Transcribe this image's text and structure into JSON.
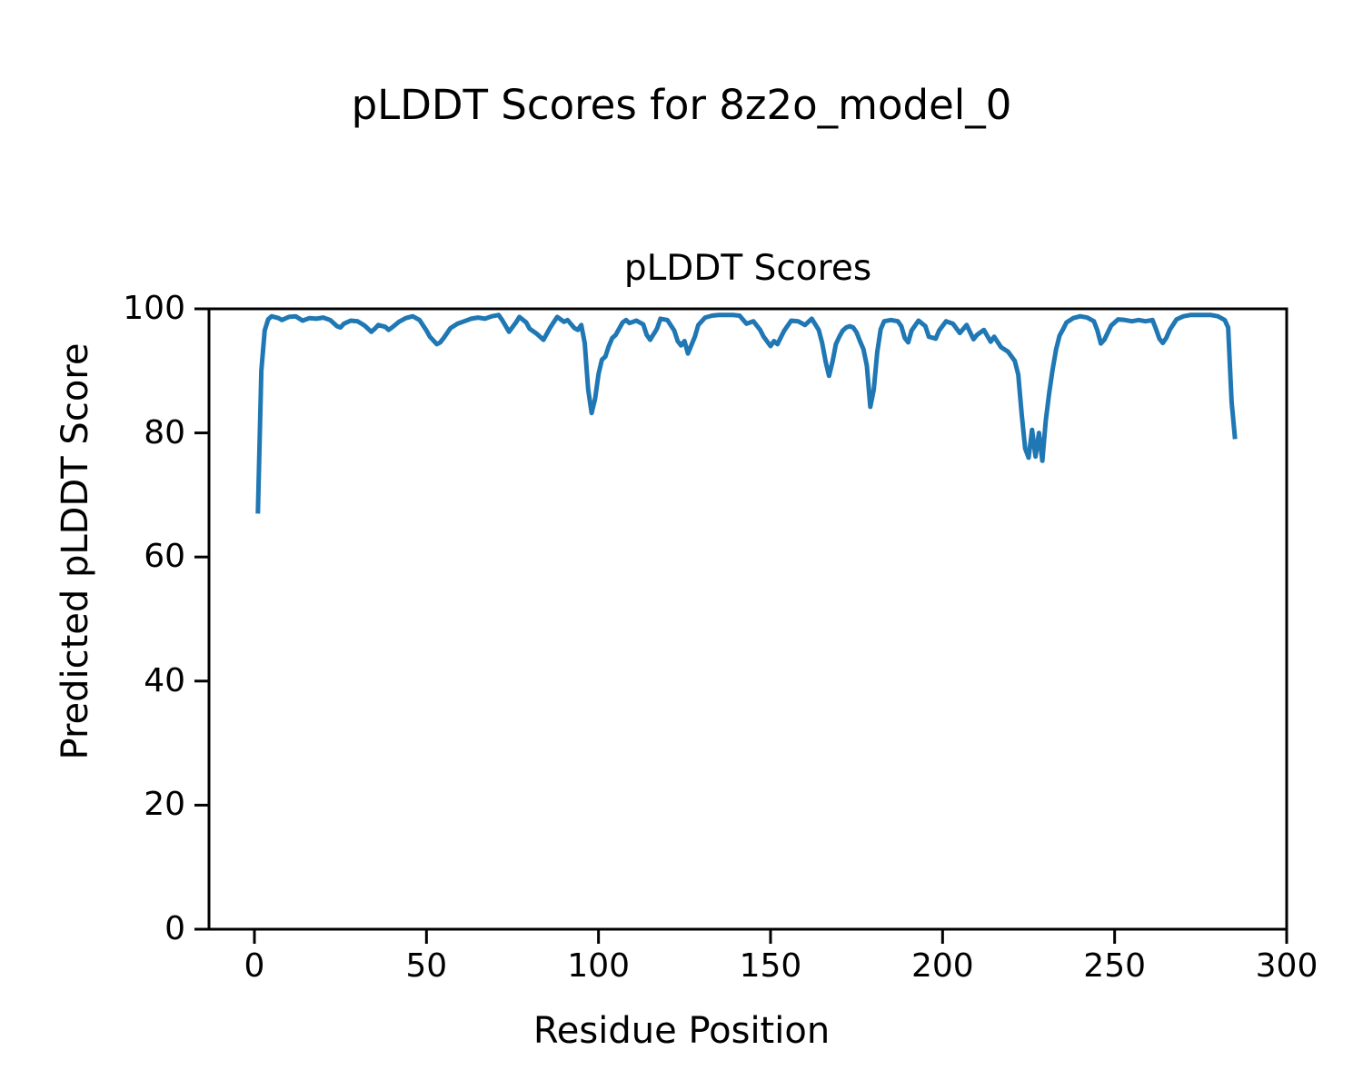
{
  "figure": {
    "suptitle": "pLDDT Scores for 8z2o_model_0",
    "background_color": "#ffffff",
    "text_color": "#000000"
  },
  "chart_data": {
    "type": "line",
    "title": "pLDDT Scores",
    "xlabel": "Residue Position",
    "ylabel": "Predicted pLDDT Score",
    "xlim": [
      -13.2,
      300
    ],
    "ylim": [
      0,
      100
    ],
    "xticks": [
      0,
      50,
      100,
      150,
      200,
      250,
      300
    ],
    "yticks": [
      0,
      20,
      40,
      60,
      80,
      100
    ],
    "grid": false,
    "legend": null,
    "line_color": "#1f77b4",
    "spine_color": "#000000",
    "series": [
      {
        "name": "pLDDT",
        "x": [
          1,
          2,
          3,
          4,
          5,
          7,
          8,
          10,
          12,
          14,
          16,
          18,
          20,
          22,
          24,
          25,
          26,
          28,
          30,
          32,
          34,
          35,
          36,
          38,
          39,
          40,
          42,
          44,
          46,
          48,
          50,
          51,
          53,
          54,
          55,
          57,
          59,
          61,
          63,
          65,
          67,
          69,
          71,
          72,
          74,
          76,
          77,
          79,
          80,
          82,
          84,
          86,
          88,
          90,
          91,
          93,
          94,
          95,
          96,
          97,
          98,
          99,
          100,
          101,
          102,
          103,
          104,
          105,
          107,
          108,
          109,
          111,
          113,
          114,
          115,
          117,
          118,
          120,
          122,
          123,
          124,
          125,
          126,
          128,
          129,
          131,
          133,
          135,
          137,
          139,
          141,
          143,
          145,
          147,
          148,
          150,
          151,
          152,
          154,
          156,
          158,
          160,
          162,
          164,
          165,
          166,
          167,
          168,
          169,
          170,
          171,
          172,
          173,
          174,
          175,
          176,
          177,
          178,
          179,
          180,
          181,
          182,
          183,
          185,
          187,
          188,
          189,
          190,
          191,
          193,
          195,
          196,
          198,
          199,
          201,
          203,
          205,
          207,
          209,
          210,
          212,
          214,
          215,
          217,
          219,
          221,
          222,
          223,
          224,
          225,
          226,
          227,
          228,
          229,
          230,
          231,
          232,
          233,
          234,
          235,
          236,
          238,
          240,
          242,
          244,
          245,
          246,
          247,
          249,
          251,
          253,
          255,
          257,
          259,
          261,
          262,
          263,
          264,
          265,
          266,
          268,
          270,
          272,
          274,
          276,
          278,
          280,
          282,
          283,
          284,
          285
        ],
        "y": [
          67,
          90,
          96.5,
          98.3,
          98.8,
          98.5,
          98.2,
          98.7,
          98.8,
          98.1,
          98.5,
          98.4,
          98.6,
          98.2,
          97.2,
          97,
          97.6,
          98.1,
          98,
          97.3,
          96.3,
          96.8,
          97.4,
          97.1,
          96.6,
          97,
          97.9,
          98.5,
          98.8,
          98.2,
          96.5,
          95.5,
          94.3,
          94.6,
          95.3,
          96.9,
          97.6,
          98,
          98.4,
          98.6,
          98.4,
          98.8,
          99,
          98.2,
          96.3,
          97.8,
          98.7,
          97.8,
          96.8,
          96,
          95,
          97,
          98.7,
          97.9,
          98.2,
          96.9,
          96.6,
          97.4,
          94.5,
          87,
          83.2,
          85.5,
          89.5,
          91.8,
          92.3,
          94,
          95.3,
          95.8,
          97.8,
          98.2,
          97.7,
          98.1,
          97.5,
          95.8,
          95,
          96.8,
          98.4,
          98.2,
          96.5,
          94.8,
          94.1,
          94.8,
          92.8,
          95.5,
          97.4,
          98.6,
          98.9,
          99,
          99,
          99,
          98.9,
          97.6,
          98,
          96.6,
          95.5,
          94,
          94.8,
          94.3,
          96.5,
          98.1,
          98,
          97.4,
          98.4,
          96.6,
          94.5,
          91.5,
          89.2,
          91.5,
          94.3,
          95.5,
          96.5,
          97,
          97.2,
          97,
          96.2,
          94.8,
          93.5,
          90.8,
          84.2,
          87,
          93,
          96.7,
          98,
          98.2,
          98,
          97.2,
          95.3,
          94.6,
          96.5,
          98.1,
          97.2,
          95.5,
          95.2,
          96.5,
          98,
          97.6,
          96.1,
          97.4,
          95.1,
          95.8,
          96.6,
          94.7,
          95.5,
          93.8,
          93.1,
          91.6,
          89.4,
          83,
          77.5,
          76,
          80.5,
          76.2,
          80,
          75.5,
          82,
          86.5,
          90.3,
          93.5,
          95.7,
          96.7,
          97.8,
          98.5,
          98.8,
          98.6,
          98,
          96.5,
          94.4,
          95,
          97.3,
          98.3,
          98.2,
          98,
          98.2,
          98,
          98.2,
          96.8,
          95.2,
          94.5,
          95.3,
          96.6,
          98.3,
          98.8,
          99,
          99,
          99,
          99,
          98.8,
          98.2,
          97,
          85,
          79
        ]
      }
    ]
  }
}
